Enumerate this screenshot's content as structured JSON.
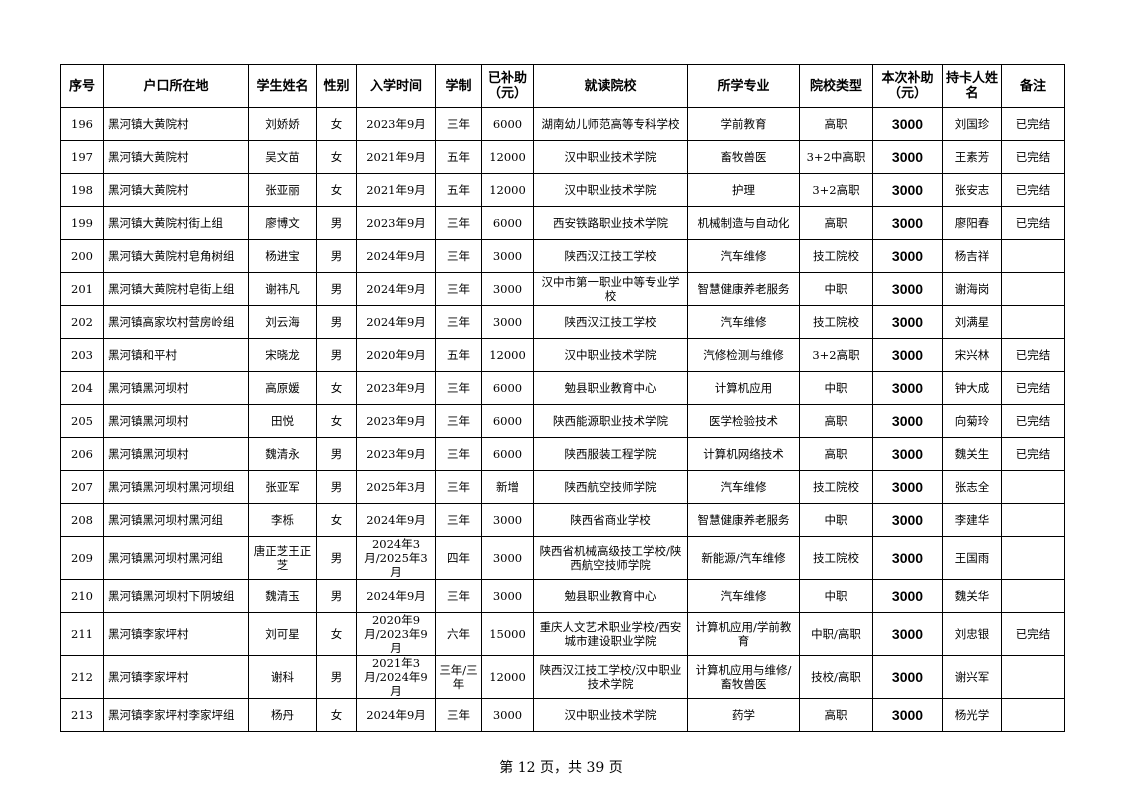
{
  "table": {
    "headers": [
      "序号",
      "户口所在地",
      "学生姓名",
      "性别",
      "入学时间",
      "学制",
      "已补助（元）",
      "就读院校",
      "所学专业",
      "院校类型",
      "本次补助（元）",
      "持卡人姓名",
      "备注"
    ],
    "rows": [
      [
        "196",
        "黑河镇大黄院村",
        "刘娇娇",
        "女",
        "2023年9月",
        "三年",
        "6000",
        "湖南幼儿师范高等专科学校",
        "学前教育",
        "高职",
        "3000",
        "刘国珍",
        "已完结"
      ],
      [
        "197",
        "黑河镇大黄院村",
        "吴文苗",
        "女",
        "2021年9月",
        "五年",
        "12000",
        "汉中职业技术学院",
        "畜牧兽医",
        "3+2中高职",
        "3000",
        "王素芳",
        "已完结"
      ],
      [
        "198",
        "黑河镇大黄院村",
        "张亚丽",
        "女",
        "2021年9月",
        "五年",
        "12000",
        "汉中职业技术学院",
        "护理",
        "3+2高职",
        "3000",
        "张安志",
        "已完结"
      ],
      [
        "199",
        "黑河镇大黄院村街上组",
        "廖博文",
        "男",
        "2023年9月",
        "三年",
        "6000",
        "西安铁路职业技术学院",
        "机械制造与自动化",
        "高职",
        "3000",
        "廖阳春",
        "已完结"
      ],
      [
        "200",
        "黑河镇大黄院村皂角树组",
        "杨进宝",
        "男",
        "2024年9月",
        "三年",
        "3000",
        "陕西汉江技工学校",
        "汽车维修",
        "技工院校",
        "3000",
        "杨吉祥",
        ""
      ],
      [
        "201",
        "黑河镇大黄院村皂街上组",
        "谢祎凡",
        "男",
        "2024年9月",
        "三年",
        "3000",
        "汉中市第一职业中等专业学校",
        "智慧健康养老服务",
        "中职",
        "3000",
        "谢海岗",
        ""
      ],
      [
        "202",
        "黑河镇高家坎村营房岭组",
        "刘云海",
        "男",
        "2024年9月",
        "三年",
        "3000",
        "陕西汉江技工学校",
        "汽车维修",
        "技工院校",
        "3000",
        "刘满星",
        ""
      ],
      [
        "203",
        "黑河镇和平村",
        "宋晓龙",
        "男",
        "2020年9月",
        "五年",
        "12000",
        "汉中职业技术学院",
        "汽修检测与维修",
        "3+2高职",
        "3000",
        "宋兴林",
        "已完结"
      ],
      [
        "204",
        "黑河镇黑河坝村",
        "高原媛",
        "女",
        "2023年9月",
        "三年",
        "6000",
        "勉县职业教育中心",
        "计算机应用",
        "中职",
        "3000",
        "钟大成",
        "已完结"
      ],
      [
        "205",
        "黑河镇黑河坝村",
        "田悦",
        "女",
        "2023年9月",
        "三年",
        "6000",
        "陕西能源职业技术学院",
        "医学检验技术",
        "高职",
        "3000",
        "向菊玲",
        "已完结"
      ],
      [
        "206",
        "黑河镇黑河坝村",
        "魏清永",
        "男",
        "2023年9月",
        "三年",
        "6000",
        "陕西服装工程学院",
        "计算机网络技术",
        "高职",
        "3000",
        "魏关生",
        "已完结"
      ],
      [
        "207",
        "黑河镇黑河坝村黑河坝组",
        "张亚军",
        "男",
        "2025年3月",
        "三年",
        "新增",
        "陕西航空技师学院",
        "汽车维修",
        "技工院校",
        "3000",
        "张志全",
        ""
      ],
      [
        "208",
        "黑河镇黑河坝村黑河组",
        "李栎",
        "女",
        "2024年9月",
        "三年",
        "3000",
        "陕西省商业学校",
        "智慧健康养老服务",
        "中职",
        "3000",
        "李建华",
        ""
      ],
      [
        "209",
        "黑河镇黑河坝村黑河组",
        "唐正芝王正芝",
        "男",
        "2024年3月/2025年3月",
        "四年",
        "3000",
        "陕西省机械高级技工学校/陕西航空技师学院",
        "新能源/汽车维修",
        "技工院校",
        "3000",
        "王国雨",
        ""
      ],
      [
        "210",
        "黑河镇黑河坝村下阴坡组",
        "魏清玉",
        "男",
        "2024年9月",
        "三年",
        "3000",
        "勉县职业教育中心",
        "汽车维修",
        "中职",
        "3000",
        "魏关华",
        ""
      ],
      [
        "211",
        "黑河镇李家坪村",
        "刘可星",
        "女",
        "2020年9月/2023年9月",
        "六年",
        "15000",
        "重庆人文艺术职业学校/西安城市建设职业学院",
        "计算机应用/学前教育",
        "中职/高职",
        "3000",
        "刘忠银",
        "已完结"
      ],
      [
        "212",
        "黑河镇李家坪村",
        "谢科",
        "男",
        "2021年3月/2024年9月",
        "三年/三年",
        "12000",
        "陕西汉江技工学校/汉中职业技术学院",
        "计算机应用与维修/畜牧兽医",
        "技校/高职",
        "3000",
        "谢兴军",
        ""
      ],
      [
        "213",
        "黑河镇李家坪村李家坪组",
        "杨丹",
        "女",
        "2024年9月",
        "三年",
        "3000",
        "汉中职业技术学院",
        "药学",
        "高职",
        "3000",
        "杨光学",
        ""
      ]
    ]
  },
  "footer": {
    "page_label": "第 12 页，共 39 页"
  }
}
